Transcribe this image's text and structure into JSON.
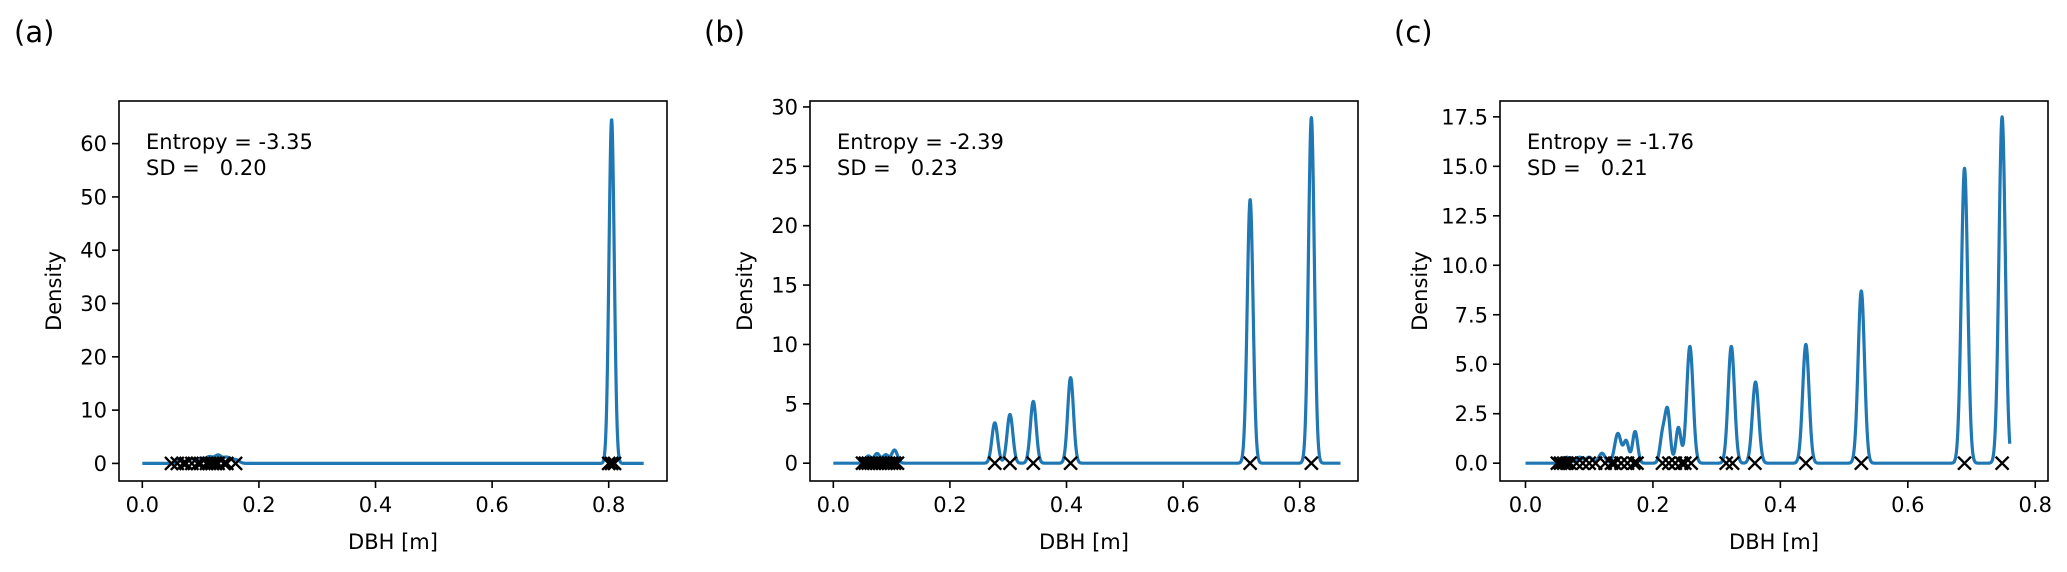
{
  "chart_data": [
    {
      "type": "line",
      "panel_label": "(a)",
      "xlabel": "DBH [m]",
      "ylabel": "Density",
      "xlim": [
        -0.04,
        0.9
      ],
      "ylim": [
        -3.3,
        68.0
      ],
      "xticks": [
        0.0,
        0.2,
        0.4,
        0.6,
        0.8
      ],
      "xtick_labels": [
        "0.0",
        "0.2",
        "0.4",
        "0.6",
        "0.8"
      ],
      "yticks": [
        0,
        10,
        20,
        30,
        40,
        50,
        60
      ],
      "ytick_labels": [
        "0",
        "10",
        "20",
        "30",
        "40",
        "50",
        "60"
      ],
      "annotation": [
        "Entropy = -3.35",
        "SD =   0.20"
      ],
      "curve_domain": [
        0.0,
        0.86
      ],
      "series_color": "#1f77b4",
      "peaks": [
        {
          "x": 0.065,
          "h": 0.6,
          "w": 0.006
        },
        {
          "x": 0.085,
          "h": 0.8,
          "w": 0.006
        },
        {
          "x": 0.1,
          "h": 0.9,
          "w": 0.006
        },
        {
          "x": 0.115,
          "h": 1.2,
          "w": 0.006
        },
        {
          "x": 0.13,
          "h": 1.5,
          "w": 0.006
        },
        {
          "x": 0.145,
          "h": 1.1,
          "w": 0.006
        },
        {
          "x": 0.16,
          "h": 0.7,
          "w": 0.006
        },
        {
          "x": 0.805,
          "h": 64.5,
          "w": 0.0045
        }
      ],
      "markers_x": [
        0.05,
        0.06,
        0.07,
        0.075,
        0.085,
        0.095,
        0.1,
        0.11,
        0.115,
        0.12,
        0.125,
        0.13,
        0.14,
        0.145,
        0.16,
        0.8,
        0.805,
        0.81
      ]
    },
    {
      "type": "line",
      "panel_label": "(b)",
      "xlabel": "DBH [m]",
      "ylabel": "Density",
      "xlim": [
        -0.04,
        0.9
      ],
      "ylim": [
        -1.5,
        30.5
      ],
      "xticks": [
        0.0,
        0.2,
        0.4,
        0.6,
        0.8
      ],
      "xtick_labels": [
        "0.0",
        "0.2",
        "0.4",
        "0.6",
        "0.8"
      ],
      "yticks": [
        0,
        5,
        10,
        15,
        20,
        25,
        30
      ],
      "ytick_labels": [
        "0",
        "5",
        "10",
        "15",
        "20",
        "25",
        "30"
      ],
      "annotation": [
        "Entropy = -2.39",
        "SD =   0.23"
      ],
      "curve_domain": [
        0.0,
        0.87
      ],
      "series_color": "#1f77b4",
      "peaks": [
        {
          "x": 0.06,
          "h": 0.6,
          "w": 0.005
        },
        {
          "x": 0.075,
          "h": 0.8,
          "w": 0.005
        },
        {
          "x": 0.09,
          "h": 0.7,
          "w": 0.005
        },
        {
          "x": 0.105,
          "h": 1.1,
          "w": 0.005
        },
        {
          "x": 0.277,
          "h": 3.4,
          "w": 0.005
        },
        {
          "x": 0.303,
          "h": 4.1,
          "w": 0.005
        },
        {
          "x": 0.343,
          "h": 5.2,
          "w": 0.005
        },
        {
          "x": 0.407,
          "h": 7.2,
          "w": 0.005
        },
        {
          "x": 0.715,
          "h": 22.2,
          "w": 0.005
        },
        {
          "x": 0.82,
          "h": 29.1,
          "w": 0.005
        }
      ],
      "markers_x": [
        0.05,
        0.055,
        0.06,
        0.065,
        0.07,
        0.075,
        0.08,
        0.085,
        0.09,
        0.095,
        0.1,
        0.105,
        0.11,
        0.277,
        0.303,
        0.343,
        0.407,
        0.715,
        0.82
      ]
    },
    {
      "type": "line",
      "panel_label": "(c)",
      "xlabel": "DBH [m]",
      "ylabel": "Density",
      "xlim": [
        -0.04,
        0.82
      ],
      "ylim": [
        -0.9,
        18.3
      ],
      "xticks": [
        0.0,
        0.2,
        0.4,
        0.6,
        0.8
      ],
      "xtick_labels": [
        "0.0",
        "0.2",
        "0.4",
        "0.6",
        "0.8"
      ],
      "yticks": [
        0.0,
        2.5,
        5.0,
        7.5,
        10.0,
        12.5,
        15.0,
        17.5
      ],
      "ytick_labels": [
        "0.0",
        "2.5",
        "5.0",
        "7.5",
        "10.0",
        "12.5",
        "15.0",
        "17.5"
      ],
      "annotation": [
        "Entropy = -1.76",
        "SD =   0.21"
      ],
      "curve_domain": [
        0.0,
        0.76
      ],
      "series_color": "#1f77b4",
      "peaks": [
        {
          "x": 0.065,
          "h": 0.3,
          "w": 0.005
        },
        {
          "x": 0.085,
          "h": 0.3,
          "w": 0.005
        },
        {
          "x": 0.1,
          "h": 0.3,
          "w": 0.005
        },
        {
          "x": 0.12,
          "h": 0.5,
          "w": 0.005
        },
        {
          "x": 0.145,
          "h": 1.5,
          "w": 0.005
        },
        {
          "x": 0.158,
          "h": 1.1,
          "w": 0.004
        },
        {
          "x": 0.172,
          "h": 1.6,
          "w": 0.004
        },
        {
          "x": 0.215,
          "h": 1.4,
          "w": 0.004
        },
        {
          "x": 0.223,
          "h": 2.6,
          "w": 0.004
        },
        {
          "x": 0.24,
          "h": 1.8,
          "w": 0.004
        },
        {
          "x": 0.258,
          "h": 5.9,
          "w": 0.005
        },
        {
          "x": 0.323,
          "h": 5.9,
          "w": 0.005
        },
        {
          "x": 0.361,
          "h": 4.1,
          "w": 0.005
        },
        {
          "x": 0.44,
          "h": 6.0,
          "w": 0.005
        },
        {
          "x": 0.527,
          "h": 8.7,
          "w": 0.005
        },
        {
          "x": 0.689,
          "h": 14.9,
          "w": 0.005
        },
        {
          "x": 0.748,
          "h": 17.5,
          "w": 0.005
        }
      ],
      "markers_x": [
        0.05,
        0.055,
        0.06,
        0.065,
        0.07,
        0.08,
        0.09,
        0.1,
        0.11,
        0.125,
        0.135,
        0.14,
        0.15,
        0.16,
        0.17,
        0.175,
        0.215,
        0.225,
        0.235,
        0.245,
        0.25,
        0.26,
        0.315,
        0.325,
        0.36,
        0.44,
        0.527,
        0.689,
        0.748
      ]
    }
  ]
}
